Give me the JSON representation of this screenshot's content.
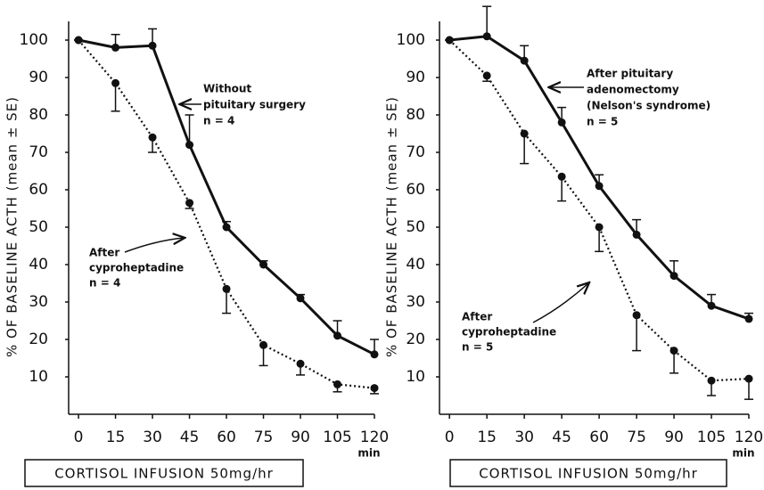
{
  "chart_data": [
    {
      "type": "line",
      "y_label": "% OF BASELINE ACTH (mean ± SE)",
      "x_label": "CORTISOL INFUSION 50mg/hr",
      "x_unit": "min",
      "x": [
        0,
        15,
        30,
        45,
        60,
        75,
        90,
        105,
        120
      ],
      "xlim": [
        -4,
        120
      ],
      "xticks": [
        0,
        15,
        30,
        45,
        60,
        75,
        90,
        105,
        120
      ],
      "ylim": [
        0,
        105
      ],
      "yticks": [
        10,
        20,
        30,
        40,
        50,
        60,
        70,
        80,
        90,
        100
      ],
      "series": [
        {
          "label_lines": [
            "Without",
            "pituitary surgery",
            "n = 4"
          ],
          "color": "#111111",
          "style": "solid",
          "error_direction": "up",
          "values": [
            100,
            98,
            98.5,
            72,
            50,
            40,
            31,
            21,
            16
          ],
          "errors": [
            0,
            3.5,
            4.5,
            8,
            1.5,
            1,
            1,
            4,
            4
          ]
        },
        {
          "label_lines": [
            "After",
            "cyproheptadine",
            "n = 4"
          ],
          "color": "#111111",
          "style": "dotted",
          "error_direction": "down",
          "values": [
            100,
            88.5,
            74,
            56.5,
            33.5,
            18.5,
            13.5,
            8,
            7
          ],
          "errors": [
            0,
            7.5,
            4,
            1.5,
            6.5,
            5.5,
            3,
            2,
            1.5
          ]
        }
      ]
    },
    {
      "type": "line",
      "y_label": "% OF BASELINE ACTH (mean ± SE)",
      "x_label": "CORTISOL INFUSION 50mg/hr",
      "x_unit": "min",
      "x": [
        0,
        15,
        30,
        45,
        60,
        75,
        90,
        105,
        120
      ],
      "xlim": [
        -4,
        120
      ],
      "xticks": [
        0,
        15,
        30,
        45,
        60,
        75,
        90,
        105,
        120
      ],
      "ylim": [
        0,
        105
      ],
      "yticks": [
        10,
        20,
        30,
        40,
        50,
        60,
        70,
        80,
        90,
        100
      ],
      "series": [
        {
          "label_lines": [
            "After pituitary",
            "adenomectomy",
            "(Nelson's syndrome)",
            "n = 5"
          ],
          "color": "#111111",
          "style": "solid",
          "error_direction": "up",
          "values": [
            100,
            101,
            94.5,
            78,
            61,
            48,
            37,
            29,
            25.5
          ],
          "errors": [
            0,
            8,
            4,
            4,
            3,
            4,
            4,
            3,
            1.5
          ]
        },
        {
          "label_lines": [
            "After",
            "cyproheptadine",
            "n = 5"
          ],
          "color": "#111111",
          "style": "dotted",
          "error_direction": "down",
          "values": [
            100,
            90.5,
            75,
            63.5,
            50,
            26.5,
            17,
            9,
            9.5
          ],
          "errors": [
            0,
            1.5,
            8,
            6.5,
            6.5,
            9.5,
            6,
            4,
            5.5
          ]
        }
      ]
    }
  ]
}
